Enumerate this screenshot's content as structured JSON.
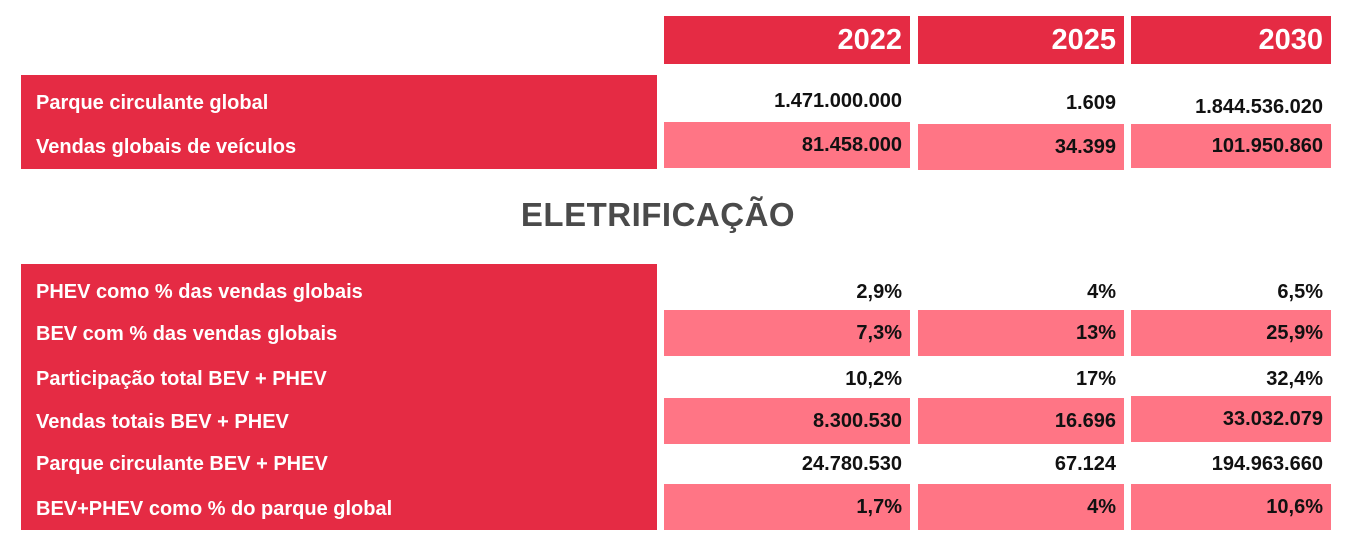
{
  "header": {
    "years": [
      "2022",
      "2025",
      "2030"
    ]
  },
  "top_table": {
    "rows": [
      {
        "label": "Parque circulante global",
        "values": [
          "1.471.000.000",
          "1.609",
          "1.844.536.020"
        ]
      },
      {
        "label": "Vendas globais de veículos",
        "values": [
          "81.458.000",
          "34.399",
          "101.950.860"
        ]
      }
    ]
  },
  "section": {
    "title": "ELETRIFICAÇÃO"
  },
  "bottom_table": {
    "rows": [
      {
        "label": "PHEV como % das vendas globais",
        "values": [
          "2,9%",
          "4%",
          "6,5%"
        ]
      },
      {
        "label": "BEV com % das vendas globais",
        "values": [
          "7,3%",
          "13%",
          "25,9%"
        ]
      },
      {
        "label": "Participação total BEV + PHEV",
        "values": [
          "10,2%",
          "17%",
          "32,4%"
        ]
      },
      {
        "label": "Vendas totais BEV + PHEV",
        "values": [
          "8.300.530",
          "16.696",
          "33.032.079"
        ]
      },
      {
        "label": "Parque circulante BEV + PHEV",
        "values": [
          "24.780.530",
          "67.124",
          "194.963.660"
        ]
      },
      {
        "label": "BEV+PHEV como % do parque global",
        "values": [
          "1,7%",
          "4%",
          "10,6%"
        ]
      }
    ]
  },
  "colors": {
    "header_red": "#e52b44",
    "row_pink": "#ff7585",
    "title_gray": "#4a4a4a"
  }
}
